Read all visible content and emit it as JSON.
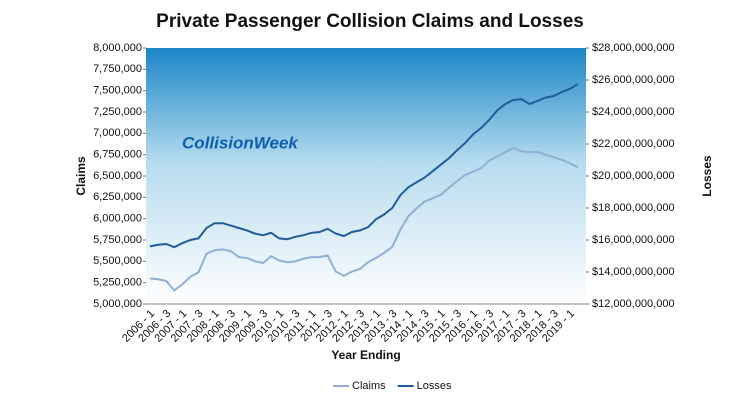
{
  "chart_data": {
    "type": "line",
    "title": "Private  Passenger Collision Claims and Losses",
    "watermark": "CollisionWeek",
    "x_label": "Year Ending",
    "y_label": "Claims",
    "y2_label": "Losses",
    "categories": [
      "2006 - 1",
      null,
      "2006 - 3",
      null,
      "2007 - 1",
      null,
      "2007 - 3",
      null,
      "2008 - 1",
      null,
      "2008 - 3",
      null,
      "2009 - 1",
      null,
      "2009 - 3",
      null,
      "2010 - 1",
      null,
      "2010 - 3",
      null,
      "2011 - 1",
      null,
      "2011 - 3",
      null,
      "2012 - 1",
      null,
      "2012 - 3",
      null,
      "2013 - 1",
      null,
      "2013 - 3",
      null,
      "2014 - 1",
      null,
      "2014 - 3",
      null,
      "2015 - 1",
      null,
      "2015 - 3",
      null,
      "2016 - 1",
      null,
      "2016 - 3",
      null,
      "2017 - 1",
      null,
      "2017 - 3",
      null,
      "2018 - 1",
      null,
      "2018 - 3",
      null,
      "2019 - 1",
      null
    ],
    "series": [
      {
        "name": "Claims",
        "color": "#8fb0d4",
        "values": [
          5300000,
          5290000,
          5270000,
          5160000,
          5230000,
          5320000,
          5370000,
          5590000,
          5630000,
          5640000,
          5620000,
          5550000,
          5540000,
          5500000,
          5480000,
          5560000,
          5510000,
          5490000,
          5500000,
          5530000,
          5550000,
          5550000,
          5570000,
          5380000,
          5330000,
          5380000,
          5410000,
          5490000,
          5540000,
          5600000,
          5670000,
          5870000,
          6030000,
          6120000,
          6200000,
          6240000,
          6280000,
          6360000,
          6440000,
          6510000,
          6550000,
          6590000,
          6680000,
          6730000,
          6780000,
          6830000,
          6790000,
          6780000,
          6780000,
          6750000,
          6720000,
          6690000,
          6650000,
          6600000
        ]
      },
      {
        "name": "Losses",
        "color": "#1f5c99",
        "axis": "y2",
        "values": [
          15600000000,
          15700000000,
          15750000000,
          15550000000,
          15800000000,
          16000000000,
          16100000000,
          16750000000,
          17050000000,
          17050000000,
          16900000000,
          16750000000,
          16600000000,
          16400000000,
          16300000000,
          16450000000,
          16100000000,
          16050000000,
          16200000000,
          16300000000,
          16450000000,
          16500000000,
          16700000000,
          16400000000,
          16250000000,
          16500000000,
          16600000000,
          16800000000,
          17300000000,
          17600000000,
          18000000000,
          18800000000,
          19300000000,
          19600000000,
          19900000000,
          20300000000,
          20700000000,
          21100000000,
          21600000000,
          22050000000,
          22600000000,
          23000000000,
          23500000000,
          24100000000,
          24500000000,
          24750000000,
          24800000000,
          24500000000,
          24700000000,
          24900000000,
          25000000000,
          25250000000,
          25450000000,
          25750000000
        ]
      }
    ],
    "ylim": [
      5000000,
      8000000
    ],
    "yticks": [
      {
        "value": 5000000,
        "label": "5,000,000"
      },
      {
        "value": 5250000,
        "label": "5,250,000"
      },
      {
        "value": 5500000,
        "label": "5,500,000"
      },
      {
        "value": 5750000,
        "label": "5,750,000"
      },
      {
        "value": 6000000,
        "label": "6,000,000"
      },
      {
        "value": 6250000,
        "label": "6,250,000"
      },
      {
        "value": 6500000,
        "label": "6,500,000"
      },
      {
        "value": 6750000,
        "label": "6,750,000"
      },
      {
        "value": 7000000,
        "label": "7,000,000"
      },
      {
        "value": 7250000,
        "label": "7,250,000"
      },
      {
        "value": 7500000,
        "label": "7,500,000"
      },
      {
        "value": 7750000,
        "label": "7,750,000"
      },
      {
        "value": 8000000,
        "label": "8,000,000"
      }
    ],
    "y2lim": [
      12000000000,
      28000000000
    ],
    "y2ticks": [
      {
        "value": 12000000000,
        "label": "$12,000,000,000"
      },
      {
        "value": 14000000000,
        "label": "$14,000,000,000"
      },
      {
        "value": 16000000000,
        "label": "$16,000,000,000"
      },
      {
        "value": 18000000000,
        "label": "$18,000,000,000"
      },
      {
        "value": 20000000000,
        "label": "$20,000,000,000"
      },
      {
        "value": 22000000000,
        "label": "$22,000,000,000"
      },
      {
        "value": 24000000000,
        "label": "$24,000,000,000"
      },
      {
        "value": 26000000000,
        "label": "$26,000,000,000"
      },
      {
        "value": 28000000000,
        "label": "$28,000,000,000"
      }
    ],
    "legend": "bottom"
  }
}
